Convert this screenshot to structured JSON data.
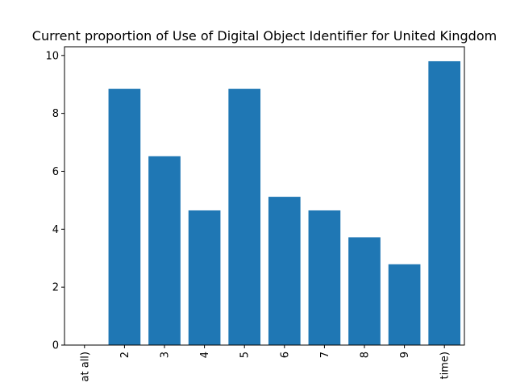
{
  "chart_data": {
    "type": "bar",
    "title": "Current proportion of Use of Digital Object Identifier for United Kingdom",
    "xlabel": "",
    "ylabel": "",
    "categories": [
      "at all)",
      "2",
      "3",
      "4",
      "5",
      "6",
      "7",
      "8",
      "9",
      "time)"
    ],
    "values": [
      0,
      8.85,
      6.52,
      4.65,
      8.85,
      5.12,
      4.65,
      3.72,
      2.79,
      9.8
    ],
    "ylim": [
      0,
      10.3
    ],
    "yticks": [
      0,
      2,
      4,
      6,
      8,
      10
    ],
    "grid": false,
    "bar_color": "#1f77b4"
  }
}
